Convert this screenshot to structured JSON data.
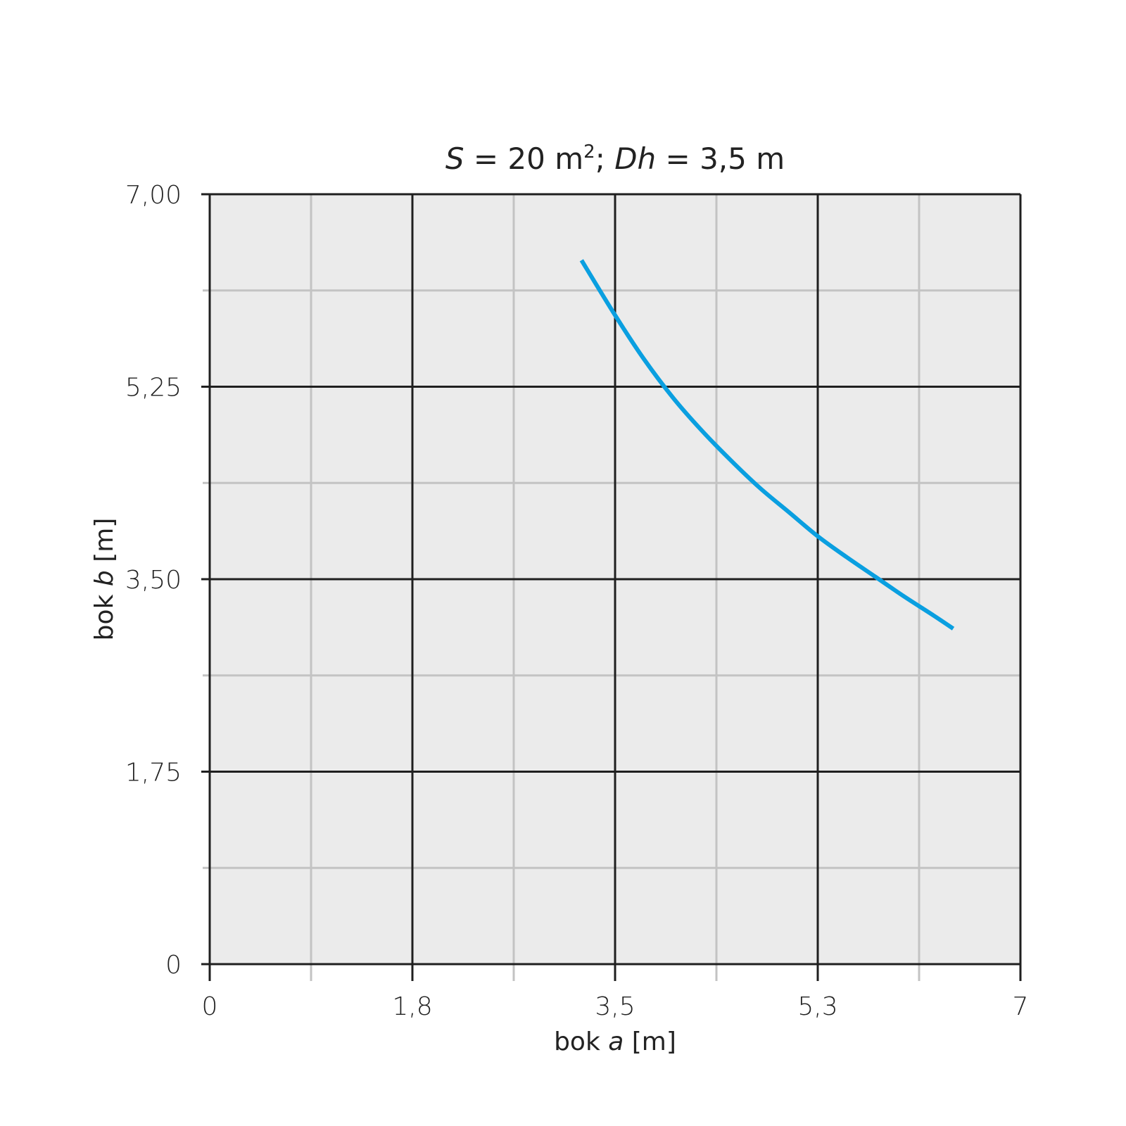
{
  "chart_data": {
    "type": "line",
    "title": {
      "s_var": "S",
      "s_rest": " = 20 m",
      "sup": "2",
      "sep": "; ",
      "dh_var": "Dh",
      "dh_rest": " = 3,5 m"
    },
    "xlabel": {
      "pre": "bok ",
      "var": "a",
      "post": " [m]"
    },
    "ylabel": {
      "pre": "bok ",
      "var": "b",
      "post": " [m]"
    },
    "xlim": [
      0,
      7
    ],
    "ylim": [
      0,
      7
    ],
    "x_major_ticks": [
      {
        "value": 0,
        "label": "0"
      },
      {
        "value": 1.75,
        "label": "1,8"
      },
      {
        "value": 3.5,
        "label": "3,5"
      },
      {
        "value": 5.25,
        "label": "5,3"
      },
      {
        "value": 7,
        "label": "7"
      }
    ],
    "x_minor_ticks": [
      0.875,
      2.625,
      4.375,
      6.125
    ],
    "y_major_ticks": [
      {
        "value": 0,
        "label": "0"
      },
      {
        "value": 1.75,
        "label": "1,75"
      },
      {
        "value": 3.5,
        "label": "3,50"
      },
      {
        "value": 5.25,
        "label": "5,25"
      },
      {
        "value": 7,
        "label": "7,00"
      }
    ],
    "y_minor_ticks": [
      0.875,
      2.625,
      4.375,
      6.125
    ],
    "grid": true,
    "series": [
      {
        "color": "#0a9fe0",
        "x": [
          3.21,
          3.5,
          3.75,
          4.0,
          4.25,
          4.5,
          4.75,
          5.0,
          5.25,
          5.5,
          5.75,
          6.0,
          6.25,
          6.42
        ],
        "y": [
          6.4,
          5.9,
          5.5,
          5.15,
          4.85,
          4.58,
          4.33,
          4.11,
          3.89,
          3.7,
          3.52,
          3.34,
          3.17,
          3.05
        ]
      }
    ],
    "colors": {
      "plot_background": "#ebebeb",
      "major_grid": "#1f1f1f",
      "minor_grid": "#c3c3c3"
    }
  }
}
